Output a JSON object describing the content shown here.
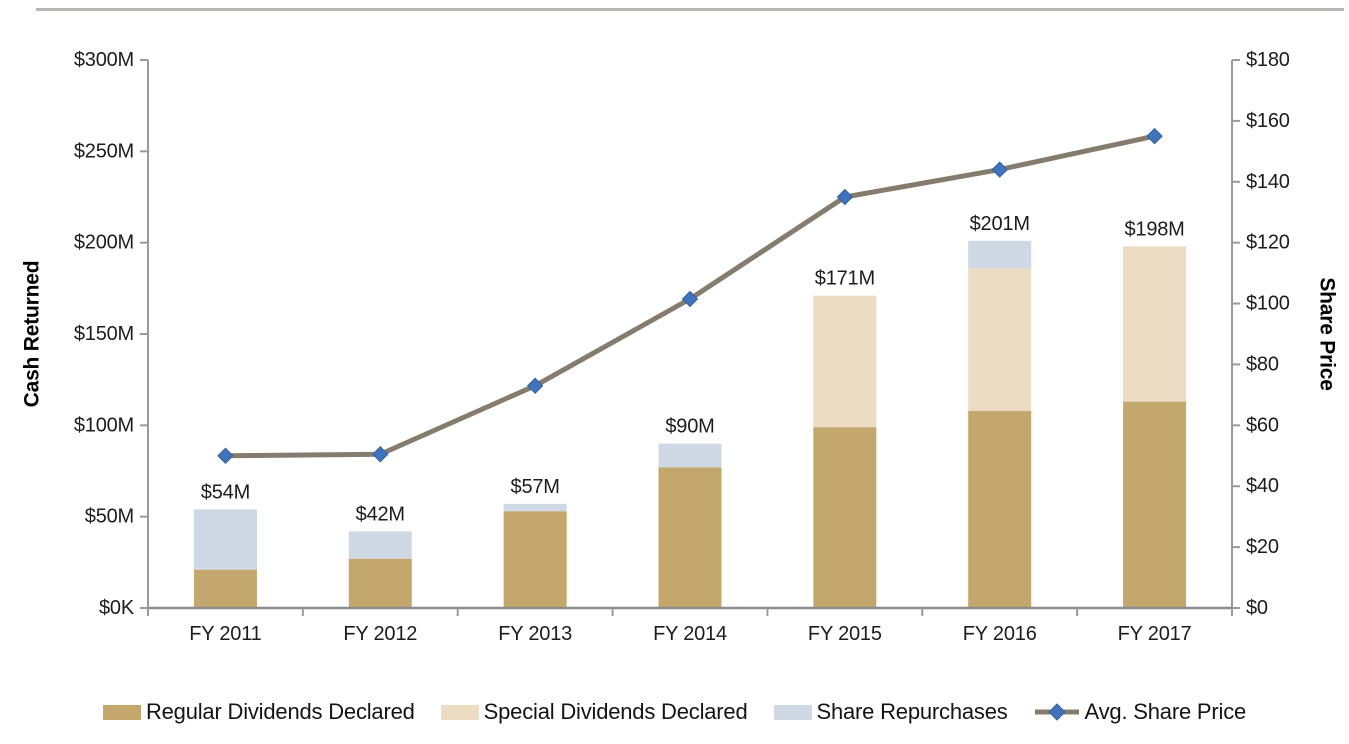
{
  "chart_data": {
    "type": "combo_stacked_bar_line",
    "title": "",
    "categories": [
      "FY 2011",
      "FY 2012",
      "FY 2013",
      "FY 2014",
      "FY 2015",
      "FY 2016",
      "FY 2017"
    ],
    "series": [
      {
        "name": "Regular Dividends Declared",
        "key": "regular-dividends",
        "type": "bar",
        "axis": "left",
        "color": "#C3A76C",
        "values": [
          21,
          27,
          53,
          77,
          99,
          108,
          113
        ]
      },
      {
        "name": "Special Dividends Declared",
        "key": "special-dividends",
        "type": "bar",
        "axis": "left",
        "color": "#ECDCC3",
        "values": [
          0,
          0,
          0,
          0,
          72,
          78,
          85
        ]
      },
      {
        "name": "Share Repurchases",
        "key": "share-repurchases",
        "type": "bar",
        "axis": "left",
        "color": "#CFD9E5",
        "values": [
          33,
          15,
          4,
          13,
          0,
          15,
          0
        ]
      },
      {
        "name": "Avg. Share Price",
        "key": "avg-share-price",
        "type": "line",
        "axis": "right",
        "line_color": "#867C6E",
        "marker": "diamond",
        "marker_color": "#3F74BC",
        "marker_edge": "#34619B",
        "values": [
          50,
          50.5,
          73,
          101.5,
          135,
          144,
          155
        ]
      }
    ],
    "bar_total_labels": [
      "$54M",
      "$42M",
      "$57M",
      "$90M",
      "$171M",
      "$201M",
      "$198M"
    ],
    "bar_totals": [
      54,
      42,
      57,
      90,
      171,
      201,
      198
    ],
    "left_axis": {
      "title": "Cash Returned",
      "tick_labels": [
        "$300M",
        "$250M",
        "$200M",
        "$150M",
        "$100M",
        "$50M",
        "$0K"
      ],
      "tick_values": [
        300,
        250,
        200,
        150,
        100,
        50,
        0
      ],
      "min": 0,
      "max": 300
    },
    "right_axis": {
      "title": "Share Price",
      "tick_labels": [
        "$180",
        "$160",
        "$140",
        "$120",
        "$100",
        "$80",
        "$60",
        "$40",
        "$20",
        "$0"
      ],
      "tick_values": [
        180,
        160,
        140,
        120,
        100,
        80,
        60,
        40,
        20,
        0
      ],
      "min": 0,
      "max": 180
    },
    "grid": false,
    "legend_position": "bottom",
    "style": {
      "axis_color": "#9A9A9A",
      "baseline_color": "#8C8C8C",
      "text_color": "#1C1C1C",
      "title_color": "#000000",
      "divider_color": "#B9B6B1"
    }
  }
}
